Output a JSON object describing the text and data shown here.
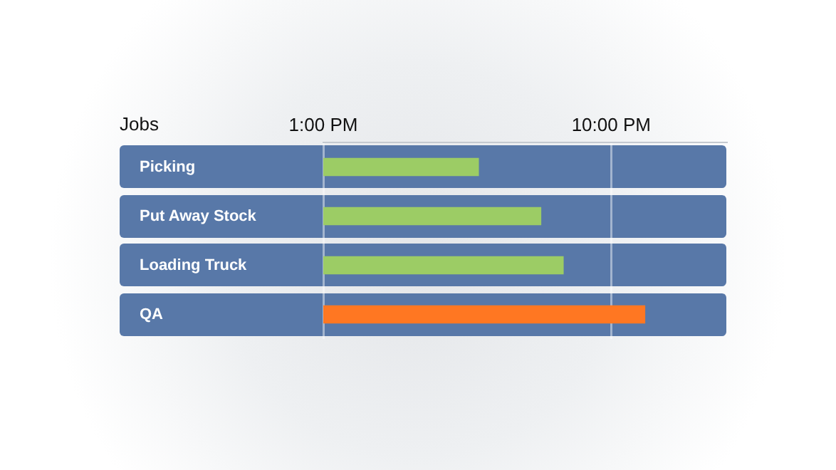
{
  "chart_data": {
    "type": "bar",
    "orientation": "horizontal",
    "ylabel": "Jobs",
    "categories": [
      "Picking",
      "Put Away Stock",
      "Loading Truck",
      "QA"
    ],
    "base": [
      13,
      13,
      13,
      13
    ],
    "values": [
      4.85,
      6.8,
      7.5,
      10.05
    ],
    "colors": [
      "#9ccc65",
      "#9ccc65",
      "#9ccc65",
      "#ff7722"
    ],
    "xlim": [
      13,
      25.6
    ],
    "xticks": [
      {
        "value": 13,
        "label": "1:00 PM"
      },
      {
        "value": 22,
        "label": "10:00 PM"
      }
    ],
    "grid": "x",
    "legend": false
  }
}
